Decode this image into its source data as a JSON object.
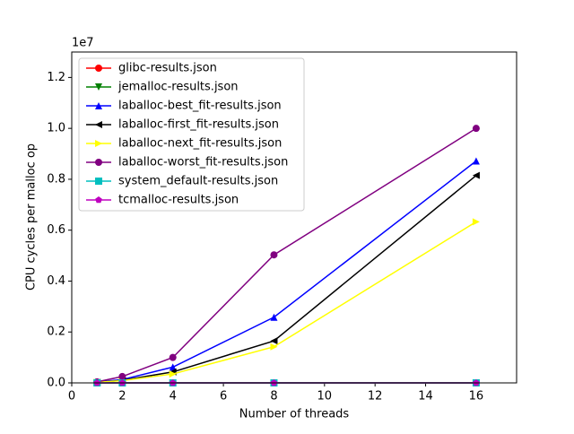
{
  "chart_data": {
    "type": "line",
    "x_label": "Number of threads",
    "y_label": "CPU cycles per malloc op",
    "y_offset_label": "1e7",
    "x": [
      1,
      2,
      4,
      8,
      16
    ],
    "xlim": [
      0,
      17.6
    ],
    "ylim": [
      0,
      1.3
    ],
    "xticks": [
      0,
      2,
      4,
      6,
      8,
      10,
      12,
      14,
      16
    ],
    "yticks": [
      {
        "value": 0,
        "label": "0.0"
      },
      0.2,
      0.4,
      0.6,
      0.8,
      {
        "value": 1,
        "label": "1.0"
      },
      1.2
    ],
    "legend": "upper left",
    "grid": false,
    "series": [
      {
        "name": "glibc-results.json",
        "color": "#ff0000",
        "marker": "circle",
        "values": [
          0,
          0,
          0,
          0,
          0
        ]
      },
      {
        "name": "jemalloc-results.json",
        "color": "#008000",
        "marker": "triangle-down",
        "values": [
          0,
          0,
          0,
          0,
          0
        ]
      },
      {
        "name": "laballoc-best_fit-results.json",
        "color": "#0000ff",
        "marker": "triangle-up",
        "values": [
          0.003,
          0.013,
          0.062,
          0.258,
          0.872
        ]
      },
      {
        "name": "laballoc-first_fit-results.json",
        "color": "#000000",
        "marker": "triangle-left",
        "values": [
          0.002,
          0.01,
          0.043,
          0.165,
          0.815
        ]
      },
      {
        "name": "laballoc-next_fit-results.json",
        "color": "#ffff00",
        "marker": "triangle-right",
        "values": [
          0.002,
          0.009,
          0.035,
          0.142,
          0.633
        ]
      },
      {
        "name": "laballoc-worst_fit-results.json",
        "color": "#800080",
        "marker": "circle",
        "values": [
          0.004,
          0.025,
          0.1,
          0.503,
          1.0
        ]
      },
      {
        "name": "system_default-results.json",
        "color": "#00bfbf",
        "marker": "square",
        "values": [
          0,
          0,
          0,
          0,
          0
        ]
      },
      {
        "name": "tcmalloc-results.json",
        "color": "#bf00bf",
        "marker": "pentagon",
        "values": [
          0,
          0,
          0,
          0,
          0
        ]
      }
    ]
  }
}
